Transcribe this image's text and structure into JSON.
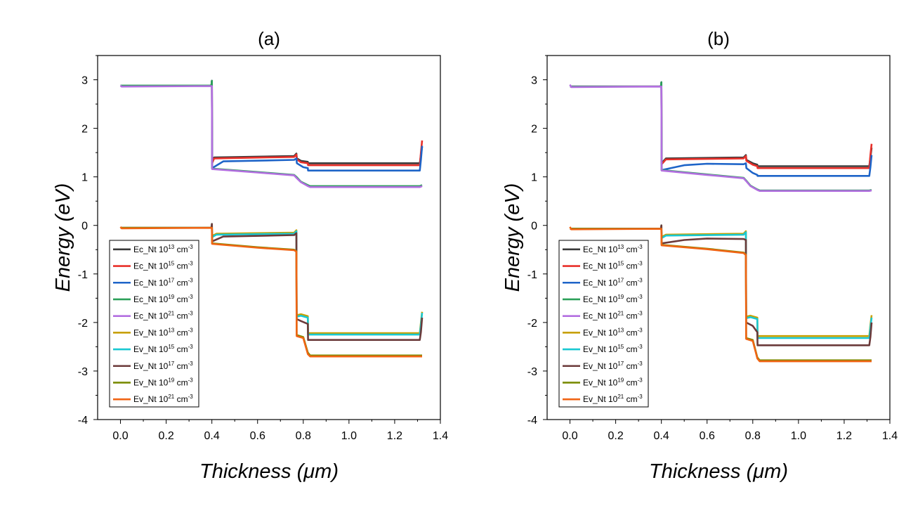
{
  "chart_data": [
    {
      "type": "line",
      "title": "(a)",
      "xlabel": "Thickness (μm)",
      "ylabel": "Energy (eV)",
      "xlim": [
        -0.1,
        1.4
      ],
      "ylim": [
        -4,
        3.5
      ],
      "xticks": [
        "0.0",
        "0.2",
        "0.4",
        "0.6",
        "0.8",
        "1.0",
        "1.2",
        "1.4"
      ],
      "yticks": [
        "-4",
        "-3",
        "-2",
        "-1",
        "0",
        "1",
        "2",
        "3"
      ],
      "legend_position": "lower-left",
      "series": [
        {
          "name": "Ec_Nt 10",
          "sup": "13",
          "unit": "cm",
          "unit_sup": "-3",
          "color": "#3a3a3a",
          "x": [
            0,
            0.398,
            0.4,
            0.401,
            0.41,
            0.76,
            0.77,
            0.772,
            0.79,
            0.82,
            0.821,
            1.31,
            1.315,
            1.32
          ],
          "y": [
            2.88,
            2.88,
            2.98,
            1.3,
            1.4,
            1.43,
            1.48,
            1.38,
            1.33,
            1.31,
            1.28,
            1.28,
            1.45,
            1.62
          ]
        },
        {
          "name": "Ec_Nt 10",
          "sup": "15",
          "unit": "cm",
          "unit_sup": "-3",
          "color": "#e8302a",
          "x": [
            0,
            0.398,
            0.4,
            0.401,
            0.41,
            0.76,
            0.77,
            0.772,
            0.79,
            0.82,
            0.821,
            1.31,
            1.315,
            1.32
          ],
          "y": [
            2.88,
            2.88,
            2.98,
            1.28,
            1.38,
            1.41,
            1.46,
            1.36,
            1.3,
            1.28,
            1.24,
            1.24,
            1.5,
            1.75
          ]
        },
        {
          "name": "Ec_Nt 10",
          "sup": "17",
          "unit": "cm",
          "unit_sup": "-3",
          "color": "#1e64c8",
          "x": [
            0,
            0.398,
            0.4,
            0.401,
            0.45,
            0.76,
            0.77,
            0.772,
            0.8,
            0.82,
            0.821,
            1.31,
            1.315,
            1.32
          ],
          "y": [
            2.88,
            2.88,
            2.98,
            1.18,
            1.32,
            1.35,
            1.38,
            1.28,
            1.2,
            1.18,
            1.13,
            1.13,
            1.35,
            1.64
          ]
        },
        {
          "name": "Ec_Nt 10",
          "sup": "19",
          "unit": "cm",
          "unit_sup": "-3",
          "color": "#2ca05a",
          "x": [
            0,
            0.398,
            0.4,
            0.401,
            0.6,
            0.76,
            0.77,
            0.79,
            0.82,
            0.83,
            1.31,
            1.315,
            1.32
          ],
          "y": [
            2.88,
            2.88,
            2.98,
            1.17,
            1.1,
            1.04,
            1.0,
            0.9,
            0.83,
            0.81,
            0.81,
            0.82,
            0.83
          ]
        },
        {
          "name": "Ec_Nt 10",
          "sup": "21",
          "unit": "cm",
          "unit_sup": "-3",
          "color": "#b36fe0",
          "x": [
            0,
            0.005,
            0.4,
            0.401,
            0.6,
            0.76,
            0.77,
            0.79,
            0.82,
            0.83,
            1.31,
            1.315,
            1.32
          ],
          "y": [
            2.88,
            2.86,
            2.87,
            1.16,
            1.09,
            1.03,
            0.98,
            0.89,
            0.81,
            0.79,
            0.79,
            0.8,
            0.81
          ]
        },
        {
          "name": "Ev_Nt 10",
          "sup": "13",
          "unit": "cm",
          "unit_sup": "-3",
          "color": "#c8a000",
          "x": [
            0,
            0.398,
            0.4,
            0.401,
            0.42,
            0.76,
            0.77,
            0.771,
            0.79,
            0.82,
            0.821,
            1.31,
            1.315,
            1.32
          ],
          "y": [
            -0.05,
            -0.05,
            0.03,
            -0.22,
            -0.17,
            -0.15,
            -0.1,
            -1.85,
            -1.83,
            -1.87,
            -2.22,
            -2.22,
            -2.0,
            -1.78
          ]
        },
        {
          "name": "Ev_Nt 10",
          "sup": "15",
          "unit": "cm",
          "unit_sup": "-3",
          "color": "#19c8d2",
          "x": [
            0,
            0.398,
            0.4,
            0.401,
            0.42,
            0.76,
            0.77,
            0.771,
            0.79,
            0.82,
            0.821,
            1.31,
            1.315,
            1.32
          ],
          "y": [
            -0.05,
            -0.05,
            0.03,
            -0.24,
            -0.19,
            -0.17,
            -0.12,
            -1.88,
            -1.86,
            -1.9,
            -2.25,
            -2.25,
            -2.05,
            -1.8
          ]
        },
        {
          "name": "Ev_Nt 10",
          "sup": "17",
          "unit": "cm",
          "unit_sup": "-3",
          "color": "#6b3a3a",
          "x": [
            0,
            0.398,
            0.4,
            0.401,
            0.45,
            0.76,
            0.77,
            0.771,
            0.79,
            0.82,
            0.821,
            1.31,
            1.315,
            1.32
          ],
          "y": [
            -0.05,
            -0.05,
            0.03,
            -0.33,
            -0.23,
            -0.2,
            -0.16,
            -1.93,
            -1.97,
            -2.03,
            -2.36,
            -2.36,
            -2.2,
            -1.9
          ]
        },
        {
          "name": "Ev_Nt 10",
          "sup": "19",
          "unit": "cm",
          "unit_sup": "-3",
          "color": "#7a8c00",
          "x": [
            0,
            0.398,
            0.4,
            0.401,
            0.6,
            0.76,
            0.77,
            0.771,
            0.8,
            0.82,
            0.83,
            1.31,
            1.32
          ],
          "y": [
            -0.05,
            -0.05,
            -0.05,
            -0.37,
            -0.45,
            -0.5,
            -0.53,
            -2.26,
            -2.3,
            -2.62,
            -2.68,
            -2.68,
            -2.68
          ]
        },
        {
          "name": "Ev_Nt 10",
          "sup": "21",
          "unit": "cm",
          "unit_sup": "-3",
          "color": "#f06414",
          "x": [
            0,
            0.005,
            0.398,
            0.4,
            0.401,
            0.6,
            0.76,
            0.77,
            0.771,
            0.8,
            0.82,
            0.83,
            1.31,
            1.32
          ],
          "y": [
            -0.03,
            -0.06,
            -0.05,
            -0.05,
            -0.38,
            -0.46,
            -0.51,
            -0.54,
            -2.28,
            -2.32,
            -2.65,
            -2.7,
            -2.7,
            -2.7
          ]
        }
      ]
    },
    {
      "type": "line",
      "title": "(b)",
      "xlabel": "Thickness (μm)",
      "ylabel": "Energy (eV)",
      "xlim": [
        -0.1,
        1.4
      ],
      "ylim": [
        -4,
        3.5
      ],
      "xticks": [
        "0.0",
        "0.2",
        "0.4",
        "0.6",
        "0.8",
        "1.0",
        "1.2",
        "1.4"
      ],
      "yticks": [
        "-4",
        "-3",
        "-2",
        "-1",
        "0",
        "1",
        "2",
        "3"
      ],
      "legend_position": "lower-left",
      "series": [
        {
          "name": "Ec_Nt 10",
          "sup": "13",
          "unit": "cm",
          "unit_sup": "-3",
          "color": "#3a3a3a",
          "x": [
            0,
            0.398,
            0.4,
            0.401,
            0.42,
            0.76,
            0.77,
            0.772,
            0.8,
            0.82,
            0.821,
            1.31,
            1.315,
            1.32
          ],
          "y": [
            2.86,
            2.86,
            2.95,
            1.28,
            1.38,
            1.4,
            1.45,
            1.35,
            1.28,
            1.25,
            1.22,
            1.22,
            1.4,
            1.6
          ]
        },
        {
          "name": "Ec_Nt 10",
          "sup": "15",
          "unit": "cm",
          "unit_sup": "-3",
          "color": "#e8302a",
          "x": [
            0,
            0.398,
            0.4,
            0.401,
            0.42,
            0.76,
            0.77,
            0.772,
            0.8,
            0.82,
            0.821,
            1.31,
            1.315,
            1.32
          ],
          "y": [
            2.86,
            2.86,
            2.95,
            1.26,
            1.36,
            1.38,
            1.43,
            1.33,
            1.25,
            1.22,
            1.18,
            1.18,
            1.45,
            1.68
          ]
        },
        {
          "name": "Ec_Nt 10",
          "sup": "17",
          "unit": "cm",
          "unit_sup": "-3",
          "color": "#1e64c8",
          "x": [
            0,
            0.398,
            0.4,
            0.401,
            0.5,
            0.6,
            0.76,
            0.77,
            0.772,
            0.8,
            0.82,
            0.821,
            1.31,
            1.315,
            1.32
          ],
          "y": [
            2.86,
            2.86,
            2.95,
            1.14,
            1.24,
            1.27,
            1.26,
            1.28,
            1.18,
            1.08,
            1.04,
            1.02,
            1.02,
            1.2,
            1.45
          ]
        },
        {
          "name": "Ec_Nt 10",
          "sup": "19",
          "unit": "cm",
          "unit_sup": "-3",
          "color": "#2ca05a",
          "x": [
            0,
            0.398,
            0.4,
            0.401,
            0.6,
            0.76,
            0.77,
            0.79,
            0.82,
            0.83,
            1.31,
            1.32
          ],
          "y": [
            2.86,
            2.86,
            2.95,
            1.14,
            1.05,
            0.98,
            0.93,
            0.82,
            0.74,
            0.72,
            0.72,
            0.73
          ]
        },
        {
          "name": "Ec_Nt 10",
          "sup": "21",
          "unit": "cm",
          "unit_sup": "-3",
          "color": "#b36fe0",
          "x": [
            0,
            0.005,
            0.4,
            0.401,
            0.6,
            0.76,
            0.77,
            0.79,
            0.82,
            0.83,
            1.31,
            1.32
          ],
          "y": [
            2.9,
            2.85,
            2.86,
            1.13,
            1.04,
            0.97,
            0.92,
            0.81,
            0.73,
            0.71,
            0.71,
            0.72
          ]
        },
        {
          "name": "Ev_Nt 10",
          "sup": "13",
          "unit": "cm",
          "unit_sup": "-3",
          "color": "#c8a000",
          "x": [
            0,
            0.398,
            0.4,
            0.401,
            0.42,
            0.76,
            0.77,
            0.771,
            0.79,
            0.82,
            0.821,
            1.31,
            1.315,
            1.32
          ],
          "y": [
            -0.07,
            -0.07,
            0.0,
            -0.24,
            -0.19,
            -0.17,
            -0.12,
            -1.88,
            -1.86,
            -1.9,
            -2.28,
            -2.28,
            -2.05,
            -1.85
          ]
        },
        {
          "name": "Ev_Nt 10",
          "sup": "15",
          "unit": "cm",
          "unit_sup": "-3",
          "color": "#19c8d2",
          "x": [
            0,
            0.398,
            0.4,
            0.401,
            0.42,
            0.76,
            0.77,
            0.771,
            0.79,
            0.82,
            0.821,
            1.31,
            1.315,
            1.32
          ],
          "y": [
            -0.07,
            -0.07,
            0.0,
            -0.26,
            -0.21,
            -0.19,
            -0.14,
            -1.91,
            -1.89,
            -1.93,
            -2.32,
            -2.32,
            -2.1,
            -1.9
          ]
        },
        {
          "name": "Ev_Nt 10",
          "sup": "17",
          "unit": "cm",
          "unit_sup": "-3",
          "color": "#6b3a3a",
          "x": [
            0,
            0.398,
            0.4,
            0.401,
            0.5,
            0.6,
            0.76,
            0.77,
            0.771,
            0.8,
            0.82,
            0.821,
            1.31,
            1.315,
            1.32
          ],
          "y": [
            -0.07,
            -0.07,
            0.0,
            -0.37,
            -0.3,
            -0.27,
            -0.28,
            -0.3,
            -2.0,
            -2.07,
            -2.2,
            -2.47,
            -2.47,
            -2.3,
            -2.0
          ]
        },
        {
          "name": "Ev_Nt 10",
          "sup": "19",
          "unit": "cm",
          "unit_sup": "-3",
          "color": "#7a8c00",
          "x": [
            0,
            0.398,
            0.4,
            0.401,
            0.6,
            0.76,
            0.77,
            0.771,
            0.8,
            0.82,
            0.83,
            1.31,
            1.32
          ],
          "y": [
            -0.07,
            -0.07,
            -0.07,
            -0.4,
            -0.48,
            -0.56,
            -0.6,
            -2.32,
            -2.36,
            -2.72,
            -2.78,
            -2.78,
            -2.78
          ]
        },
        {
          "name": "Ev_Nt 10",
          "sup": "21",
          "unit": "cm",
          "unit_sup": "-3",
          "color": "#f06414",
          "x": [
            0,
            0.005,
            0.398,
            0.4,
            0.401,
            0.6,
            0.76,
            0.77,
            0.771,
            0.8,
            0.82,
            0.83,
            1.31,
            1.32
          ],
          "y": [
            -0.03,
            -0.08,
            -0.07,
            -0.07,
            -0.41,
            -0.49,
            -0.57,
            -0.61,
            -2.34,
            -2.38,
            -2.74,
            -2.8,
            -2.8,
            -2.8
          ]
        }
      ]
    }
  ]
}
